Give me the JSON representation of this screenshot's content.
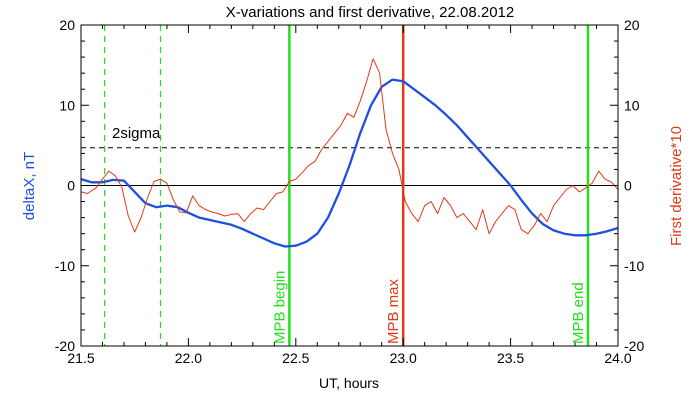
{
  "chart_data": {
    "type": "line",
    "title": "X-variations and first derivative, 22.08.2012",
    "xlabel": "UT, hours",
    "ylabel_left": "deltaX, nT",
    "ylabel_right": "First derivative*10",
    "xlim": [
      21.5,
      24.0
    ],
    "ylim": [
      -20,
      20
    ],
    "x_ticks": [
      {
        "v": 21.5,
        "label": "21.5"
      },
      {
        "v": 22.0,
        "label": "22.0"
      },
      {
        "v": 22.5,
        "label": "22.5"
      },
      {
        "v": 23.0,
        "label": "23.0"
      },
      {
        "v": 23.5,
        "label": "23.5"
      },
      {
        "v": 24.0,
        "label": "24.0"
      }
    ],
    "y_ticks": [
      {
        "v": 20,
        "label": "20"
      },
      {
        "v": 10,
        "label": "10"
      },
      {
        "v": 0,
        "label": "0"
      },
      {
        "v": -10,
        "label": "-10"
      },
      {
        "v": -20,
        "label": "-20"
      }
    ],
    "y_right_ticks": [
      {
        "v": 20,
        "label": "20"
      },
      {
        "v": 10,
        "label": "10"
      },
      {
        "v": 0,
        "label": "0"
      },
      {
        "v": -10,
        "label": "-10"
      },
      {
        "v": -20,
        "label": "-20"
      }
    ],
    "colors": {
      "deltaX": "#1f4fe0",
      "derivative": "#e13a1a",
      "mpb_green": "#22e01a",
      "mpb_max": "#e13a1a",
      "reference": "#000000"
    },
    "series": [
      {
        "key": "deltaX",
        "x": [
          21.5,
          21.55,
          21.6,
          21.65,
          21.7,
          21.75,
          21.8,
          21.85,
          21.9,
          21.95,
          22.0,
          22.05,
          22.1,
          22.15,
          22.2,
          22.25,
          22.3,
          22.35,
          22.4,
          22.45,
          22.5,
          22.55,
          22.6,
          22.65,
          22.7,
          22.75,
          22.8,
          22.85,
          22.9,
          22.95,
          23.0,
          23.05,
          23.1,
          23.15,
          23.2,
          23.25,
          23.3,
          23.35,
          23.4,
          23.45,
          23.5,
          23.55,
          23.6,
          23.65,
          23.7,
          23.75,
          23.8,
          23.85,
          23.9,
          23.95,
          24.0
        ],
        "y": [
          0.8,
          0.4,
          0.4,
          0.7,
          0.6,
          -0.8,
          -2.2,
          -2.7,
          -2.5,
          -2.7,
          -3.4,
          -4.0,
          -4.3,
          -4.6,
          -4.9,
          -5.4,
          -6.0,
          -6.6,
          -7.2,
          -7.6,
          -7.5,
          -7.0,
          -6.0,
          -4.0,
          -1.0,
          2.5,
          6.5,
          10.0,
          12.3,
          13.2,
          13.0,
          12.0,
          11.0,
          10.0,
          8.8,
          7.5,
          6.0,
          4.5,
          3.0,
          1.5,
          0.0,
          -1.8,
          -3.5,
          -4.8,
          -5.6,
          -6.0,
          -6.2,
          -6.2,
          -6.0,
          -5.7,
          -5.3
        ]
      },
      {
        "key": "derivative",
        "x": [
          21.5,
          21.53,
          21.57,
          21.6,
          21.63,
          21.66,
          21.69,
          21.72,
          21.75,
          21.78,
          21.81,
          21.84,
          21.87,
          21.9,
          21.93,
          21.96,
          21.99,
          22.02,
          22.05,
          22.08,
          22.11,
          22.14,
          22.17,
          22.2,
          22.23,
          22.26,
          22.29,
          22.32,
          22.35,
          22.38,
          22.41,
          22.44,
          22.47,
          22.5,
          22.53,
          22.56,
          22.59,
          22.62,
          22.65,
          22.68,
          22.71,
          22.74,
          22.77,
          22.8,
          22.83,
          22.86,
          22.89,
          22.92,
          22.95,
          22.98,
          23.01,
          23.04,
          23.07,
          23.1,
          23.13,
          23.16,
          23.19,
          23.22,
          23.25,
          23.28,
          23.31,
          23.34,
          23.37,
          23.4,
          23.43,
          23.46,
          23.49,
          23.52,
          23.55,
          23.58,
          23.61,
          23.64,
          23.67,
          23.7,
          23.73,
          23.76,
          23.79,
          23.82,
          23.85,
          23.88,
          23.91,
          23.94,
          23.97,
          24.0
        ],
        "y": [
          -0.8,
          -1.0,
          -0.3,
          0.8,
          1.8,
          1.2,
          -0.2,
          -3.8,
          -5.8,
          -4.0,
          -1.5,
          0.5,
          0.8,
          0.3,
          -1.8,
          -3.3,
          -3.4,
          -1.3,
          -2.5,
          -3.0,
          -3.3,
          -3.5,
          -3.8,
          -3.6,
          -3.5,
          -4.5,
          -3.5,
          -2.8,
          -3.0,
          -2.0,
          -1.0,
          -0.8,
          0.5,
          0.8,
          1.6,
          2.5,
          3.0,
          4.5,
          5.5,
          6.5,
          7.5,
          9.0,
          8.5,
          10.5,
          13.0,
          15.8,
          14.0,
          7.0,
          4.0,
          2.0,
          -2.0,
          -3.5,
          -4.5,
          -2.5,
          -2.0,
          -3.5,
          -1.5,
          -2.5,
          -4.0,
          -3.5,
          -4.5,
          -5.5,
          -3.0,
          -6.0,
          -4.5,
          -3.5,
          -2.5,
          -3.0,
          -5.5,
          -6.0,
          -5.0,
          -3.5,
          -4.5,
          -2.5,
          -1.5,
          -0.5,
          0.0,
          -0.8,
          -0.3,
          0.3,
          1.8,
          0.8,
          0.4,
          -0.5
        ]
      }
    ],
    "reference_lines": {
      "sigma_level": 4.7,
      "zero_level": 0
    },
    "green_dashed_x": [
      21.61,
      21.87
    ],
    "annotations": [
      {
        "key": "sigma",
        "text": "2sigma"
      },
      {
        "key": "mpb_begin",
        "text": "MPB begin",
        "x": 22.47
      },
      {
        "key": "mpb_max",
        "text": "MPB max",
        "x": 23.0
      },
      {
        "key": "mpb_end",
        "text": "MPB end",
        "x": 23.86
      }
    ]
  }
}
